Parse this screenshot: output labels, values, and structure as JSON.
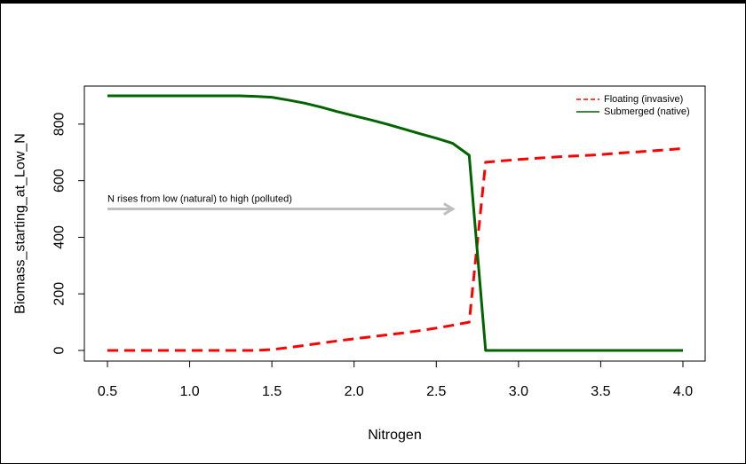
{
  "chart_data": {
    "type": "line",
    "title": "",
    "xlabel": "Nitrogen",
    "ylabel": "Biomass_starting_at_Low_N",
    "xlim": [
      0.5,
      4.0
    ],
    "ylim": [
      0,
      900
    ],
    "x_ticks": [
      "0.5",
      "1.0",
      "1.5",
      "2.0",
      "2.5",
      "3.0",
      "3.5",
      "4.0"
    ],
    "y_ticks": [
      "0",
      "200",
      "400",
      "600",
      "800"
    ],
    "grid": false,
    "legend_position": "top-right",
    "series": [
      {
        "name": "Floating (invasive)",
        "color": "#ff0000",
        "line_style": "dashed",
        "x": [
          0.5,
          0.6,
          0.7,
          0.8,
          0.9,
          1.0,
          1.1,
          1.2,
          1.3,
          1.4,
          1.5,
          1.6,
          1.7,
          1.8,
          1.9,
          2.0,
          2.1,
          2.2,
          2.3,
          2.4,
          2.5,
          2.6,
          2.7,
          2.8,
          2.9,
          3.0,
          3.1,
          3.2,
          3.3,
          3.4,
          3.5,
          3.6,
          3.7,
          3.8,
          3.9,
          4.0
        ],
        "values": [
          0,
          0,
          0,
          0,
          0,
          0,
          0,
          0,
          0,
          0,
          3,
          10,
          18,
          26,
          34,
          41,
          48,
          55,
          62,
          70,
          79,
          89,
          100,
          665,
          670,
          675,
          679,
          683,
          686,
          689,
          692,
          697,
          701,
          705,
          709,
          714
        ]
      },
      {
        "name": "Submerged (native)",
        "color": "#006400",
        "line_style": "solid",
        "x": [
          0.5,
          0.6,
          0.7,
          0.8,
          0.9,
          1.0,
          1.1,
          1.2,
          1.3,
          1.4,
          1.5,
          1.6,
          1.7,
          1.8,
          1.9,
          2.0,
          2.1,
          2.2,
          2.3,
          2.4,
          2.5,
          2.6,
          2.7,
          2.8,
          2.9,
          3.0,
          3.1,
          3.2,
          3.3,
          3.4,
          3.5,
          3.6,
          3.7,
          3.8,
          3.9,
          4.0
        ],
        "values": [
          900,
          900,
          900,
          900,
          900,
          900,
          900,
          900,
          900,
          898,
          895,
          885,
          874,
          860,
          844,
          829,
          815,
          800,
          783,
          766,
          750,
          732,
          690,
          0,
          0,
          0,
          0,
          0,
          0,
          0,
          0,
          0,
          0,
          0,
          0,
          0
        ]
      }
    ],
    "annotations": [
      {
        "text": "N rises from low (natural) to high (polluted)",
        "arrow_from": [
          0.5,
          500
        ],
        "arrow_to": [
          2.6,
          500
        ],
        "arrow_color": "#bebebe"
      }
    ]
  }
}
